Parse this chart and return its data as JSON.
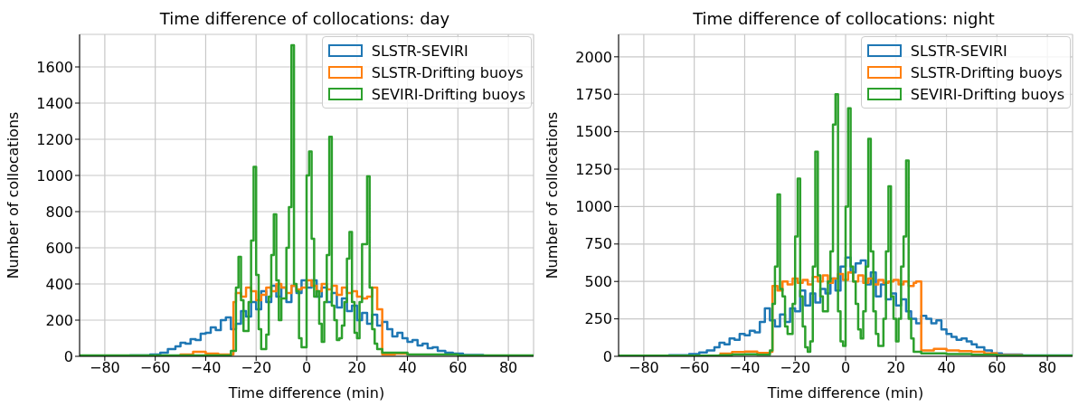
{
  "chart_data": [
    {
      "type": "step",
      "title": "Time difference of collocations: day",
      "xlabel": "Time difference (min)",
      "ylabel": "Number of collocations",
      "xlim": [
        -90,
        90
      ],
      "xticks": [
        -80,
        -60,
        -40,
        -20,
        0,
        20,
        40,
        60,
        80
      ],
      "ylim": [
        0,
        1780
      ],
      "yticks": [
        0,
        200,
        400,
        600,
        800,
        1000,
        1200,
        1400,
        1600
      ],
      "grid": true,
      "legend": "top right",
      "series": [
        {
          "name": "SLSTR-SEVIRI",
          "color": "#1f77b4",
          "x": [
            -90,
            -70,
            -62,
            -58,
            -55,
            -52,
            -50,
            -48,
            -46,
            -44,
            -42,
            -40,
            -38,
            -36,
            -34,
            -32,
            -30,
            -28,
            -26,
            -24,
            -22,
            -20,
            -18,
            -16,
            -14,
            -12,
            -10,
            -8,
            -6,
            -4,
            -2,
            0,
            2,
            4,
            6,
            8,
            10,
            12,
            14,
            16,
            18,
            20,
            22,
            24,
            26,
            28,
            30,
            32,
            34,
            36,
            38,
            40,
            42,
            44,
            46,
            48,
            50,
            52,
            55,
            58,
            62,
            70,
            90
          ],
          "values": [
            3,
            5,
            10,
            20,
            40,
            55,
            75,
            70,
            95,
            90,
            125,
            130,
            160,
            145,
            200,
            215,
            150,
            180,
            250,
            220,
            300,
            260,
            360,
            300,
            390,
            330,
            380,
            300,
            390,
            350,
            420,
            380,
            420,
            330,
            380,
            300,
            350,
            270,
            320,
            250,
            280,
            200,
            240,
            180,
            230,
            170,
            190,
            150,
            110,
            130,
            100,
            80,
            90,
            60,
            70,
            45,
            50,
            30,
            20,
            15,
            8,
            4,
            4
          ]
        },
        {
          "name": "SLSTR-Drifting buoys",
          "color": "#ff7f0e",
          "x": [
            -90,
            -50,
            -45,
            -40,
            -35,
            -29,
            -28,
            -26,
            -24,
            -22,
            -20,
            -18,
            -16,
            -14,
            -12,
            -10,
            -8,
            -6,
            -4,
            -2,
            0,
            2,
            4,
            6,
            8,
            10,
            12,
            14,
            16,
            18,
            20,
            22,
            24,
            26,
            28,
            30,
            35,
            40
          ],
          "values": [
            2,
            10,
            25,
            15,
            10,
            300,
            350,
            330,
            380,
            360,
            310,
            340,
            380,
            360,
            400,
            380,
            350,
            390,
            370,
            380,
            420,
            390,
            360,
            400,
            370,
            390,
            340,
            380,
            350,
            360,
            330,
            320,
            330,
            380,
            260,
            10,
            15,
            8
          ]
        },
        {
          "name": "SEVIRI-Drifting buoys",
          "color": "#2ca02c",
          "x": [
            -90,
            -30,
            -28,
            -27,
            -26,
            -25,
            -23,
            -22,
            -21,
            -20,
            -19,
            -18,
            -16,
            -15,
            -14,
            -13,
            -12,
            -11,
            -10,
            -8,
            -7,
            -6,
            -5,
            -4,
            -3,
            -2,
            0,
            1,
            2,
            3,
            4,
            5,
            6,
            7,
            8,
            9,
            10,
            11,
            12,
            13,
            14,
            15,
            16,
            17,
            18,
            19,
            20,
            21,
            22,
            24,
            25,
            26,
            27,
            28,
            30,
            40,
            60,
            90
          ],
          "values": [
            5,
            30,
            380,
            550,
            310,
            140,
            300,
            640,
            1047,
            450,
            150,
            40,
            120,
            330,
            560,
            785,
            420,
            200,
            320,
            600,
            825,
            1720,
            400,
            360,
            100,
            50,
            1000,
            1133,
            650,
            330,
            360,
            180,
            80,
            300,
            560,
            1214,
            280,
            200,
            90,
            100,
            170,
            300,
            540,
            688,
            300,
            130,
            100,
            300,
            620,
            995,
            380,
            150,
            70,
            40,
            20,
            10,
            5,
            5
          ]
        }
      ]
    },
    {
      "type": "step",
      "title": "Time difference of collocations: night",
      "xlabel": "Time difference (min)",
      "ylabel": "Number of collocations",
      "xlim": [
        -90,
        90
      ],
      "xticks": [
        -80,
        -60,
        -40,
        -20,
        0,
        20,
        40,
        60,
        80
      ],
      "ylim": [
        0,
        2150
      ],
      "yticks": [
        0,
        250,
        500,
        750,
        1000,
        1250,
        1500,
        1750,
        2000
      ],
      "grid": true,
      "legend": "top right",
      "series": [
        {
          "name": "SLSTR-SEVIRI",
          "color": "#1f77b4",
          "x": [
            -90,
            -70,
            -62,
            -58,
            -55,
            -52,
            -50,
            -48,
            -46,
            -44,
            -42,
            -40,
            -38,
            -36,
            -34,
            -32,
            -30,
            -28,
            -26,
            -24,
            -22,
            -20,
            -18,
            -16,
            -14,
            -12,
            -10,
            -8,
            -6,
            -4,
            -2,
            0,
            2,
            4,
            6,
            8,
            10,
            12,
            14,
            16,
            18,
            20,
            22,
            24,
            26,
            28,
            30,
            32,
            34,
            36,
            38,
            40,
            42,
            44,
            46,
            48,
            50,
            52,
            55,
            58,
            62,
            70,
            90
          ],
          "values": [
            5,
            8,
            15,
            25,
            40,
            60,
            90,
            80,
            120,
            110,
            150,
            140,
            170,
            160,
            230,
            320,
            240,
            200,
            280,
            230,
            320,
            300,
            440,
            340,
            420,
            360,
            450,
            420,
            520,
            440,
            600,
            660,
            560,
            620,
            640,
            480,
            560,
            400,
            480,
            380,
            420,
            340,
            380,
            300,
            250,
            220,
            270,
            250,
            220,
            240,
            180,
            150,
            130,
            110,
            120,
            100,
            80,
            60,
            40,
            20,
            12,
            6,
            4
          ]
        },
        {
          "name": "SLSTR-Drifting buoys",
          "color": "#ff7f0e",
          "x": [
            -50,
            -45,
            -40,
            -35,
            -30,
            -29,
            -27,
            -25,
            -23,
            -21,
            -19,
            -17,
            -15,
            -13,
            -11,
            -9,
            -7,
            -5,
            -3,
            -1,
            1,
            3,
            5,
            7,
            9,
            11,
            13,
            15,
            17,
            19,
            21,
            23,
            25,
            27,
            28,
            30,
            35,
            40,
            45,
            50,
            55,
            60,
            70
          ],
          "values": [
            18,
            28,
            32,
            22,
            30,
            470,
            440,
            500,
            480,
            520,
            490,
            510,
            480,
            530,
            500,
            540,
            490,
            520,
            550,
            510,
            560,
            500,
            540,
            490,
            520,
            480,
            510,
            490,
            500,
            510,
            480,
            500,
            470,
            490,
            500,
            40,
            50,
            40,
            35,
            30,
            20,
            8,
            4
          ]
        },
        {
          "name": "SEVIRI-Drifting buoys",
          "color": "#2ca02c",
          "x": [
            -90,
            -50,
            -45,
            -40,
            -35,
            -30,
            -29,
            -28,
            -27,
            -26,
            -25,
            -24,
            -23,
            -21,
            -20,
            -19,
            -18,
            -17,
            -16,
            -15,
            -14,
            -13,
            -12,
            -11,
            -10,
            -9,
            -7,
            -6,
            -5,
            -4,
            -3,
            -2,
            -1,
            0,
            1,
            2,
            3,
            4,
            5,
            6,
            7,
            8,
            9,
            10,
            11,
            12,
            13,
            15,
            16,
            17,
            18,
            19,
            20,
            21,
            22,
            23,
            24,
            25,
            26,
            27,
            30,
            40,
            50,
            60,
            90
          ],
          "values": [
            5,
            8,
            12,
            14,
            10,
            40,
            350,
            600,
            1081,
            450,
            400,
            200,
            150,
            350,
            800,
            1187,
            400,
            200,
            60,
            30,
            100,
            600,
            1366,
            540,
            400,
            300,
            500,
            700,
            1548,
            1750,
            300,
            100,
            70,
            1000,
            1656,
            600,
            500,
            350,
            180,
            120,
            300,
            600,
            1452,
            700,
            300,
            150,
            70,
            250,
            700,
            1135,
            400,
            250,
            100,
            250,
            600,
            800,
            1308,
            250,
            120,
            30,
            20,
            15,
            10,
            5,
            3
          ]
        }
      ]
    }
  ]
}
